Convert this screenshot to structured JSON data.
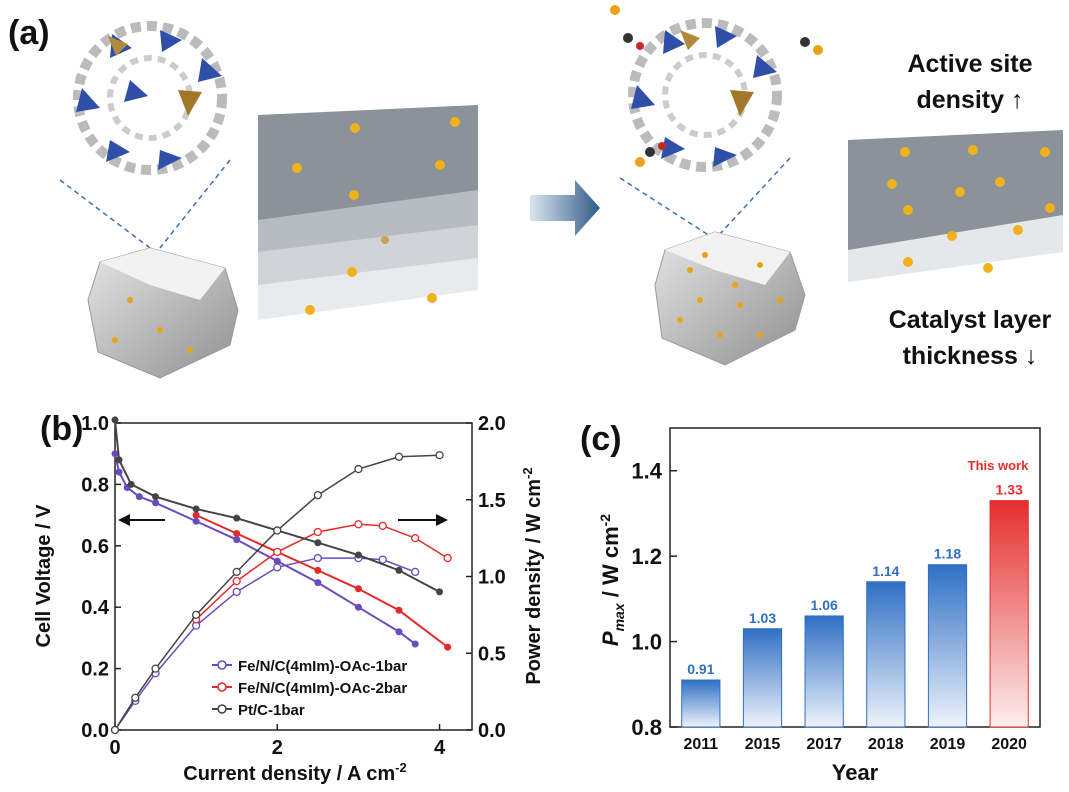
{
  "panel_a": {
    "label": "(a)",
    "annotation_top": [
      "Active site",
      "density ↑"
    ],
    "annotation_bottom": [
      "Catalyst layer",
      "thickness ↓"
    ],
    "arrow_icon": "right-arrow-icon"
  },
  "chart_data": [
    {
      "panel": "(b)",
      "type": "line",
      "xlabel": "Current density / A cm",
      "xlabel_sup": "-2",
      "ylabel_left": "Cell Voltage / V",
      "ylabel_right": "Power density / W cm",
      "ylabel_right_sup": "-2",
      "xlim": [
        0,
        4.4
      ],
      "ylim_left": [
        0.0,
        1.0
      ],
      "ylim_right": [
        0.0,
        2.0
      ],
      "xticks": [
        "0",
        "2",
        "4"
      ],
      "yticks_left": [
        "0.0",
        "0.2",
        "0.4",
        "0.6",
        "0.8",
        "1.0"
      ],
      "yticks_right": [
        "0.0",
        "0.5",
        "1.0",
        "1.5",
        "2.0"
      ],
      "legend_position": "bottom-left",
      "series": [
        {
          "name": "Fe/N/C(4mIm)-OAc-1bar",
          "color": "#6a4bbf",
          "voltage": [
            [
              0,
              0.9
            ],
            [
              0.05,
              0.84
            ],
            [
              0.15,
              0.79
            ],
            [
              0.3,
              0.76
            ],
            [
              0.5,
              0.74
            ],
            [
              1.0,
              0.68
            ],
            [
              1.5,
              0.62
            ],
            [
              2.0,
              0.55
            ],
            [
              2.5,
              0.48
            ],
            [
              3.0,
              0.4
            ],
            [
              3.5,
              0.32
            ],
            [
              3.7,
              0.28
            ]
          ],
          "power": [
            [
              0,
              0.0
            ],
            [
              0.25,
              0.19
            ],
            [
              0.5,
              0.37
            ],
            [
              1.0,
              0.68
            ],
            [
              1.5,
              0.9
            ],
            [
              2.0,
              1.06
            ],
            [
              2.5,
              1.12
            ],
            [
              3.0,
              1.12
            ],
            [
              3.3,
              1.11
            ],
            [
              3.7,
              1.03
            ]
          ]
        },
        {
          "name": "Fe/N/C(4mIm)-OAc-2bar",
          "color": "#e52a2a",
          "voltage": [
            [
              1.0,
              0.7
            ],
            [
              1.5,
              0.64
            ],
            [
              2.0,
              0.58
            ],
            [
              2.5,
              0.52
            ],
            [
              3.0,
              0.46
            ],
            [
              3.5,
              0.39
            ],
            [
              4.1,
              0.27
            ]
          ],
          "power": [
            [
              1.0,
              0.72
            ],
            [
              1.5,
              0.97
            ],
            [
              2.0,
              1.16
            ],
            [
              2.5,
              1.29
            ],
            [
              3.0,
              1.34
            ],
            [
              3.3,
              1.33
            ],
            [
              3.7,
              1.25
            ],
            [
              4.1,
              1.12
            ]
          ]
        },
        {
          "name": "Pt/C-1bar",
          "color": "#444444",
          "voltage": [
            [
              0,
              1.01
            ],
            [
              0.05,
              0.88
            ],
            [
              0.2,
              0.8
            ],
            [
              0.5,
              0.76
            ],
            [
              1.0,
              0.72
            ],
            [
              1.5,
              0.69
            ],
            [
              2.0,
              0.65
            ],
            [
              2.5,
              0.61
            ],
            [
              3.0,
              0.57
            ],
            [
              3.5,
              0.52
            ],
            [
              4.0,
              0.45
            ]
          ],
          "power": [
            [
              0,
              0.0
            ],
            [
              0.25,
              0.21
            ],
            [
              0.5,
              0.4
            ],
            [
              1.0,
              0.75
            ],
            [
              1.5,
              1.03
            ],
            [
              2.0,
              1.3
            ],
            [
              2.5,
              1.53
            ],
            [
              3.0,
              1.7
            ],
            [
              3.5,
              1.78
            ],
            [
              4.0,
              1.79
            ]
          ]
        }
      ]
    },
    {
      "panel": "(c)",
      "type": "bar",
      "xlabel": "Year",
      "ylabel": "P",
      "ylabel_sub": "max",
      "ylabel_unit": " / W cm",
      "ylabel_sup": "-2",
      "ylim": [
        0.8,
        1.5
      ],
      "yticks": [
        "0.8",
        "1.0",
        "1.2",
        "1.4"
      ],
      "categories": [
        "2011",
        "2015",
        "2017",
        "2018",
        "2019",
        "2020"
      ],
      "values": [
        0.91,
        1.03,
        1.06,
        1.14,
        1.18,
        1.33
      ],
      "value_labels": [
        "0.91",
        "1.03",
        "1.06",
        "1.14",
        "1.18",
        "1.33"
      ],
      "colors": [
        "#2f6fc4",
        "#2f6fc4",
        "#2f6fc4",
        "#2f6fc4",
        "#2f6fc4",
        "#e62e2e"
      ],
      "annotation": "This work"
    }
  ]
}
